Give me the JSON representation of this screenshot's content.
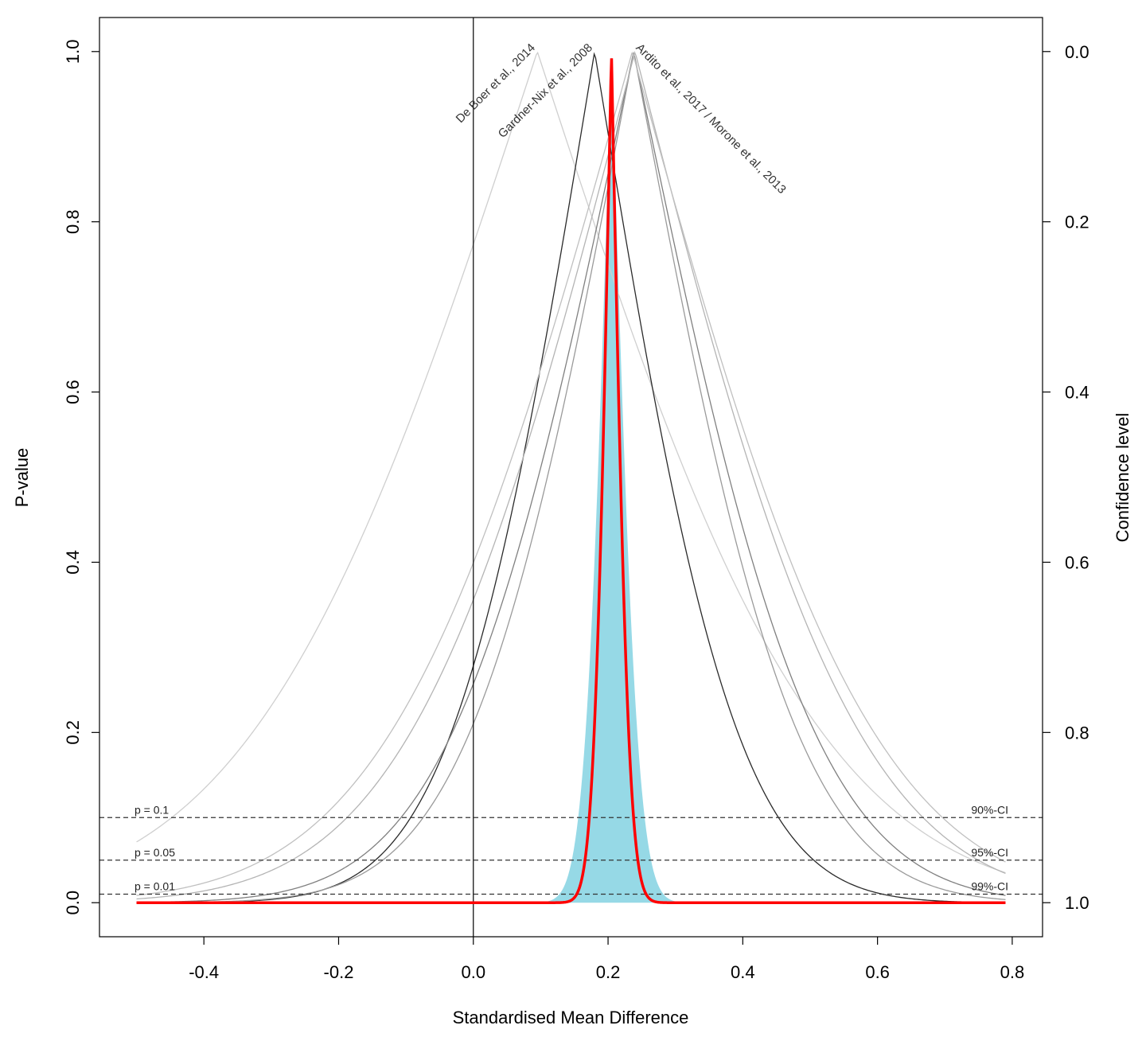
{
  "chart_data": {
    "type": "line",
    "xlabel": "Standardised Mean Difference",
    "ylabel": "P-value",
    "y2label": "Confidence level",
    "xlim": [
      -0.555,
      0.845
    ],
    "ylim": [
      -0.04,
      1.04
    ],
    "x_ticks": [
      "-0.4",
      "-0.2",
      "0.0",
      "0.2",
      "0.4",
      "0.6",
      "0.8"
    ],
    "y_ticks": [
      "0.0",
      "0.2",
      "0.4",
      "0.6",
      "0.8",
      "1.0"
    ],
    "y2_ticks": [
      "1.0",
      "0.8",
      "0.6",
      "0.4",
      "0.2",
      "0.0"
    ],
    "reference_lines": [
      {
        "p": 0.1,
        "label": "p = 0.1",
        "ci_label": "90%-CI"
      },
      {
        "p": 0.05,
        "label": "p = 0.05",
        "ci_label": "95%-CI"
      },
      {
        "p": 0.01,
        "label": "p = 0.01",
        "ci_label": "99%-CI"
      }
    ],
    "vertical_line_at": 0.0,
    "x_range": [
      -0.5,
      0.79
    ],
    "studies": [
      {
        "label": "De Boer et al., 2014",
        "estimate": 0.095,
        "se": 0.33,
        "color": "#cfcfcf"
      },
      {
        "label": "Gardner-Nix et al., 2008",
        "estimate": 0.18,
        "se": 0.166,
        "color": "#2a2a2a"
      },
      {
        "label": "",
        "estimate": 0.238,
        "se": 0.21,
        "color": "#808080"
      },
      {
        "label": "",
        "estimate": 0.238,
        "se": 0.19,
        "color": "#9a9a9a"
      },
      {
        "label": "",
        "estimate": 0.24,
        "se": 0.26,
        "color": "#b4b4b4"
      },
      {
        "label": "",
        "estimate": 0.236,
        "se": 0.28,
        "color": "#c0c0c0"
      }
    ],
    "overlapping_study_labels_text": "Ardito et al., 2017 / Morone et al., 2013",
    "pooled": {
      "estimate": 0.205,
      "se": 0.02,
      "color": "#ff0000"
    },
    "prediction_band": {
      "estimate": 0.205,
      "se": 0.03,
      "color": "#96d9e6"
    }
  }
}
